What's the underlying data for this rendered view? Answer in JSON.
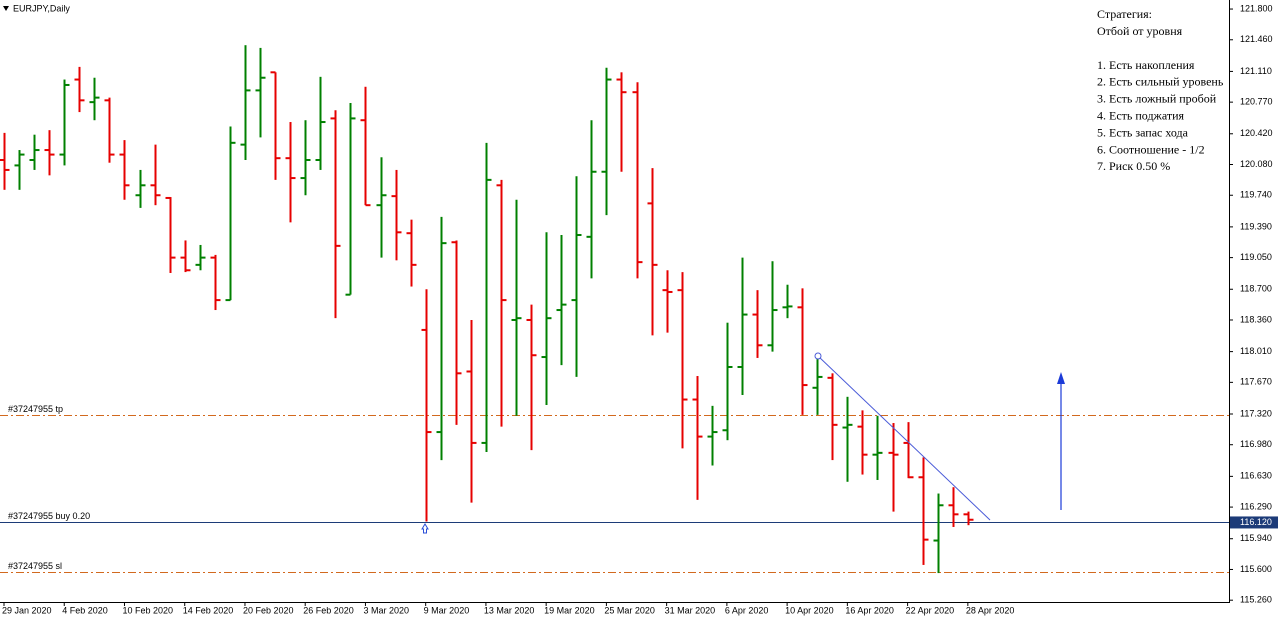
{
  "chart_data": {
    "type": "ohlc",
    "title": "EURJPY,Daily",
    "categories": [
      "29 Jan 2020",
      null,
      null,
      null,
      "4 Feb 2020",
      null,
      null,
      null,
      "10 Feb 2020",
      null,
      null,
      null,
      "14 Feb 2020",
      null,
      null,
      null,
      "20 Feb 2020",
      null,
      null,
      null,
      "26 Feb 2020",
      null,
      null,
      null,
      "3 Mar 2020",
      null,
      null,
      null,
      "9 Mar 2020",
      null,
      null,
      null,
      "13 Mar 2020",
      null,
      null,
      null,
      "19 Mar 2020",
      null,
      null,
      null,
      "25 Mar 2020",
      null,
      null,
      null,
      "31 Mar 2020",
      null,
      null,
      null,
      "6 Apr 2020",
      null,
      null,
      null,
      "10 Apr 2020",
      null,
      null,
      null,
      "16 Apr 2020",
      null,
      null,
      null,
      "22 Apr 2020",
      null,
      null,
      null,
      "28 Apr 2020"
    ],
    "open": [
      120.13,
      120.07,
      120.13,
      120.24,
      120.19,
      121.02,
      120.77,
      120.79,
      120.19,
      119.74,
      119.85,
      119.71,
      119.05,
      118.97,
      119.05,
      118.58,
      120.3,
      120.9,
      121.1,
      120.15,
      119.93,
      120.13,
      120.59,
      118.64,
      120.57,
      119.63,
      119.73,
      119.32,
      118.25,
      117.12,
      119.22,
      117.79,
      117.0,
      119.85,
      118.36,
      118.36,
      117.95,
      118.47,
      118.58,
      119.28,
      120.0,
      121.02,
      120.88,
      119.65,
      118.69,
      118.69,
      117.48,
      117.07,
      117.14,
      117.84,
      118.42,
      118.08,
      118.5,
      118.5,
      117.61,
      117.72,
      117.17,
      117.18,
      116.87,
      116.89,
      117.0,
      116.62,
      115.92,
      116.31,
      116.21
    ],
    "high": [
      120.43,
      120.24,
      120.41,
      120.46,
      121.02,
      121.16,
      121.04,
      120.82,
      120.35,
      120.02,
      120.3,
      119.72,
      119.24,
      119.19,
      119.08,
      120.5,
      121.4,
      121.37,
      121.1,
      120.55,
      120.57,
      121.05,
      120.68,
      120.76,
      120.94,
      120.16,
      120.02,
      119.47,
      118.7,
      119.5,
      119.24,
      118.36,
      120.32,
      119.91,
      119.69,
      118.53,
      119.33,
      119.3,
      119.95,
      120.57,
      121.15,
      121.1,
      120.99,
      120.04,
      118.91,
      118.89,
      117.74,
      117.41,
      118.33,
      119.05,
      118.69,
      119.01,
      118.75,
      118.71,
      117.95,
      117.77,
      117.51,
      117.36,
      117.3,
      117.22,
      117.23,
      116.84,
      116.44,
      116.51,
      116.24
    ],
    "low": [
      119.8,
      119.8,
      120.02,
      119.96,
      120.07,
      120.66,
      120.57,
      120.1,
      119.69,
      119.6,
      119.63,
      118.88,
      118.89,
      118.91,
      118.47,
      118.58,
      120.13,
      120.38,
      119.91,
      119.44,
      119.74,
      120.02,
      118.38,
      118.64,
      119.63,
      119.05,
      119.02,
      118.73,
      116.13,
      116.81,
      117.2,
      116.34,
      116.9,
      117.18,
      117.3,
      116.92,
      117.42,
      117.86,
      117.73,
      118.82,
      119.52,
      120.0,
      118.82,
      118.19,
      118.22,
      116.94,
      116.37,
      116.75,
      117.03,
      117.53,
      117.94,
      118.01,
      118.38,
      117.31,
      117.31,
      116.81,
      116.57,
      116.65,
      116.59,
      116.24,
      116.61,
      115.65,
      115.56,
      116.07,
      116.09
    ],
    "close": [
      120.02,
      120.19,
      120.24,
      120.19,
      120.96,
      120.79,
      120.82,
      120.19,
      119.85,
      119.85,
      119.74,
      119.05,
      118.91,
      119.05,
      118.58,
      120.32,
      120.9,
      121.04,
      120.15,
      119.93,
      120.13,
      120.55,
      119.18,
      120.59,
      119.63,
      119.74,
      119.33,
      118.97,
      117.12,
      119.21,
      117.77,
      117.0,
      119.91,
      118.58,
      118.38,
      117.97,
      118.38,
      118.53,
      119.3,
      120.0,
      121.02,
      120.88,
      119.0,
      118.97,
      118.67,
      117.48,
      117.07,
      117.12,
      117.84,
      118.42,
      118.08,
      118.47,
      118.51,
      117.64,
      117.73,
      117.2,
      117.2,
      116.87,
      116.89,
      116.87,
      116.62,
      115.93,
      116.31,
      116.21,
      116.15
    ],
    "up_color": "#008000",
    "down_color": "#e60000",
    "ylim": [
      115.24,
      121.9
    ],
    "yticks": [
      {
        "value": 121.8,
        "label": "121.800"
      },
      {
        "value": 121.46,
        "label": "121.460"
      },
      {
        "value": 121.11,
        "label": "121.110"
      },
      {
        "value": 120.77,
        "label": "120.770"
      },
      {
        "value": 120.42,
        "label": "120.420"
      },
      {
        "value": 120.08,
        "label": "120.080"
      },
      {
        "value": 119.74,
        "label": "119.740"
      },
      {
        "value": 119.39,
        "label": "119.390"
      },
      {
        "value": 119.05,
        "label": "119.050"
      },
      {
        "value": 118.7,
        "label": "118.700"
      },
      {
        "value": 118.36,
        "label": "118.360"
      },
      {
        "value": 118.01,
        "label": "118.010"
      },
      {
        "value": 117.67,
        "label": "117.670"
      },
      {
        "value": 117.32,
        "label": "117.320"
      },
      {
        "value": 116.98,
        "label": "116.980"
      },
      {
        "value": 116.63,
        "label": "116.630"
      },
      {
        "value": 116.29,
        "label": "116.290"
      },
      {
        "value": 115.94,
        "label": "115.940"
      },
      {
        "value": 115.6,
        "label": "115.600"
      },
      {
        "value": 115.26,
        "label": "115.260"
      }
    ],
    "levels": [
      {
        "name": "#37247955 tp",
        "value": 117.31,
        "color": "#d2691e"
      },
      {
        "name": "#37247955 buy 0.20",
        "value": 116.12,
        "color": "#1c3b78"
      },
      {
        "name": "#37247955 sl",
        "value": 115.57,
        "color": "#d2691e"
      }
    ],
    "price_label": {
      "value": 116.12,
      "label": "116.120",
      "color": "#1c3b78"
    }
  },
  "strategy": {
    "title": "Стратегия:",
    "subtitle": "Отбой от уровня",
    "items": [
      "1. Есть накопления",
      "2. Есть сильный уровень",
      "3. Есть ложный пробой",
      "4. Есть поджатия",
      "5. Есть запас хода",
      "6. Соотношение - 1/2",
      "7. Риск 0.50 %"
    ]
  }
}
